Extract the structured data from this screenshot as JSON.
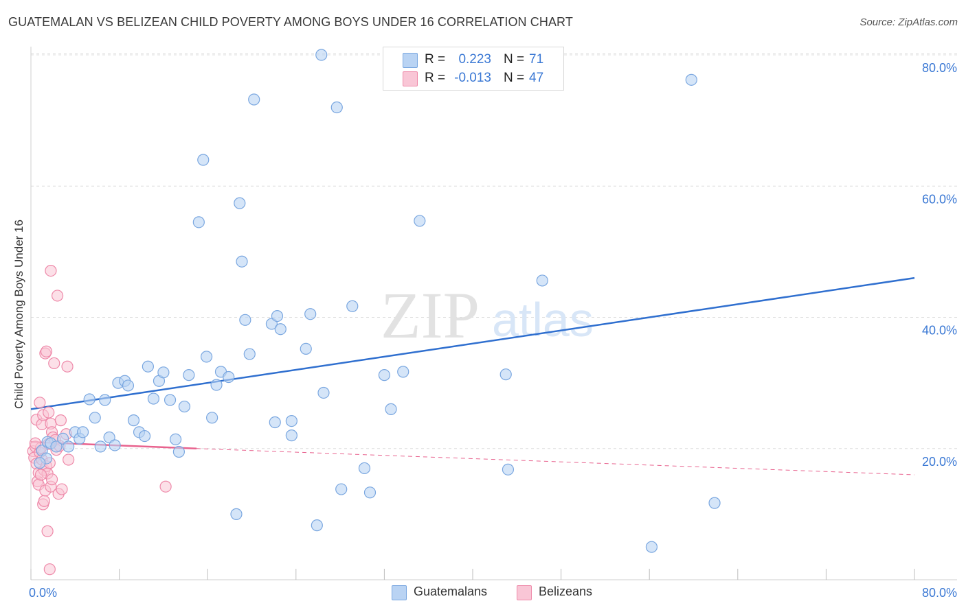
{
  "title": "GUATEMALAN VS BELIZEAN CHILD POVERTY AMONG BOYS UNDER 16 CORRELATION CHART",
  "source": "Source: ZipAtlas.com",
  "watermark": {
    "zip": "ZIP",
    "atlas": "atlas"
  },
  "legend": {
    "guatemalans": {
      "r_label": "R =",
      "r_value": "0.223",
      "n_label": "N =",
      "n_value": "71"
    },
    "belizeans": {
      "r_label": "R =",
      "r_value": "-0.013",
      "n_label": "N =",
      "n_value": "47"
    }
  },
  "bottom_legend": {
    "guatemalans": "Guatemalans",
    "belizeans": "Belizeans"
  },
  "colors": {
    "guatemalans_fill": "#b9d3f3",
    "guatemalans_stroke": "#7aa7e0",
    "guatemalans_line": "#2f6fcf",
    "belizeans_fill": "#f9c6d6",
    "belizeans_stroke": "#ee89a9",
    "belizeans_line": "#e8628e",
    "tick_text": "#3a78d4",
    "grid": "#dcdcdc"
  },
  "chart_data": {
    "type": "scatter",
    "title": "GUATEMALAN VS BELIZEAN CHILD POVERTY AMONG BOYS UNDER 16 CORRELATION CHART",
    "xlabel": "",
    "ylabel": "Child Poverty Among Boys Under 16",
    "xlim": [
      0,
      80
    ],
    "ylim": [
      0,
      80
    ],
    "x_tick_labels": [
      "0.0%",
      "80.0%"
    ],
    "y_ticks": [
      20,
      40,
      60,
      80
    ],
    "y_tick_labels": [
      "20.0%",
      "40.0%",
      "60.0%",
      "80.0%"
    ],
    "series": [
      {
        "name": "Guatemalans",
        "r": 0.223,
        "n": 71,
        "trend": {
          "x": [
            0,
            80
          ],
          "y": [
            26.0,
            46.0
          ]
        },
        "points": [
          [
            1.0,
            19.7
          ],
          [
            1.4,
            18.5
          ],
          [
            1.5,
            21.0
          ],
          [
            1.8,
            20.8
          ],
          [
            2.3,
            20.3
          ],
          [
            2.9,
            21.5
          ],
          [
            3.4,
            20.3
          ],
          [
            4.0,
            22.5
          ],
          [
            4.4,
            21.5
          ],
          [
            4.7,
            22.5
          ],
          [
            5.3,
            27.5
          ],
          [
            5.8,
            24.7
          ],
          [
            6.3,
            20.3
          ],
          [
            6.7,
            27.4
          ],
          [
            7.1,
            21.7
          ],
          [
            7.6,
            20.5
          ],
          [
            7.9,
            30.0
          ],
          [
            8.5,
            30.3
          ],
          [
            8.8,
            29.6
          ],
          [
            9.3,
            24.3
          ],
          [
            9.8,
            22.5
          ],
          [
            10.3,
            21.9
          ],
          [
            10.6,
            32.5
          ],
          [
            11.1,
            27.6
          ],
          [
            11.6,
            30.3
          ],
          [
            12.0,
            31.6
          ],
          [
            12.6,
            27.4
          ],
          [
            13.1,
            21.4
          ],
          [
            13.4,
            19.5
          ],
          [
            13.9,
            26.4
          ],
          [
            14.3,
            31.2
          ],
          [
            15.2,
            54.5
          ],
          [
            15.6,
            64.0
          ],
          [
            15.9,
            34.0
          ],
          [
            16.4,
            24.7
          ],
          [
            16.8,
            29.7
          ],
          [
            17.2,
            31.7
          ],
          [
            17.9,
            30.9
          ],
          [
            18.6,
            10.0
          ],
          [
            18.9,
            57.4
          ],
          [
            19.1,
            48.5
          ],
          [
            19.4,
            39.6
          ],
          [
            19.8,
            34.4
          ],
          [
            20.2,
            73.2
          ],
          [
            21.8,
            39.0
          ],
          [
            22.1,
            24.0
          ],
          [
            22.3,
            40.2
          ],
          [
            22.6,
            38.2
          ],
          [
            23.6,
            24.2
          ],
          [
            23.6,
            22.0
          ],
          [
            24.9,
            35.2
          ],
          [
            25.3,
            40.5
          ],
          [
            25.9,
            8.3
          ],
          [
            26.3,
            80.0
          ],
          [
            26.5,
            28.5
          ],
          [
            27.7,
            72.0
          ],
          [
            28.1,
            13.8
          ],
          [
            29.1,
            41.7
          ],
          [
            30.2,
            17.0
          ],
          [
            30.7,
            13.3
          ],
          [
            32.0,
            31.2
          ],
          [
            32.6,
            26.0
          ],
          [
            33.7,
            31.7
          ],
          [
            35.2,
            54.7
          ],
          [
            43.0,
            31.3
          ],
          [
            43.2,
            16.8
          ],
          [
            46.3,
            45.6
          ],
          [
            56.2,
            5.0
          ],
          [
            59.8,
            76.2
          ],
          [
            61.9,
            11.7
          ],
          [
            0.8,
            17.8
          ]
        ]
      },
      {
        "name": "Belizeans",
        "r": -0.013,
        "n": 47,
        "trend": {
          "x": [
            0,
            15
          ],
          "y": [
            21.0,
            20.0
          ]
        },
        "trend_dashed": {
          "x": [
            15,
            80
          ],
          "y": [
            20.0,
            16.0
          ]
        },
        "points": [
          [
            0.2,
            19.6
          ],
          [
            0.3,
            18.6
          ],
          [
            0.4,
            20.3
          ],
          [
            0.5,
            17.7
          ],
          [
            0.5,
            24.4
          ],
          [
            0.6,
            15.0
          ],
          [
            0.7,
            16.3
          ],
          [
            0.7,
            14.5
          ],
          [
            0.8,
            19.4
          ],
          [
            0.8,
            27.0
          ],
          [
            0.9,
            20.1
          ],
          [
            1.0,
            23.7
          ],
          [
            1.0,
            18.3
          ],
          [
            1.1,
            11.5
          ],
          [
            1.1,
            25.1
          ],
          [
            1.2,
            12.0
          ],
          [
            1.2,
            16.7
          ],
          [
            1.3,
            34.5
          ],
          [
            1.3,
            13.6
          ],
          [
            1.4,
            34.8
          ],
          [
            1.4,
            17.3
          ],
          [
            1.5,
            16.2
          ],
          [
            1.5,
            7.4
          ],
          [
            1.6,
            25.5
          ],
          [
            1.6,
            20.7
          ],
          [
            1.7,
            1.6
          ],
          [
            1.7,
            17.8
          ],
          [
            1.8,
            47.1
          ],
          [
            1.8,
            14.2
          ],
          [
            1.8,
            23.8
          ],
          [
            1.9,
            22.5
          ],
          [
            1.9,
            15.3
          ],
          [
            2.0,
            21.7
          ],
          [
            2.1,
            33.0
          ],
          [
            2.2,
            21.3
          ],
          [
            2.3,
            19.8
          ],
          [
            2.4,
            43.3
          ],
          [
            2.5,
            13.1
          ],
          [
            2.6,
            20.4
          ],
          [
            2.7,
            24.3
          ],
          [
            2.8,
            13.8
          ],
          [
            3.2,
            22.2
          ],
          [
            3.3,
            32.5
          ],
          [
            3.4,
            18.3
          ],
          [
            12.2,
            14.2
          ],
          [
            0.4,
            20.8
          ],
          [
            0.9,
            16.0
          ]
        ]
      }
    ]
  }
}
